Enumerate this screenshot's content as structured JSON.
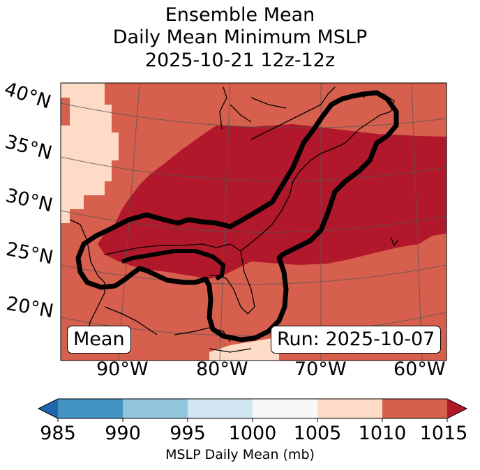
{
  "title": {
    "line1": "Ensemble Mean",
    "line2": "Daily Mean Minimum MSLP",
    "line3": "2025-10-21 12z-12z"
  },
  "map": {
    "lat_labels": [
      "40°N",
      "35°N",
      "30°N",
      "25°N",
      "20°N"
    ],
    "lon_labels": [
      "90°W",
      "80°W",
      "70°W",
      "60°W"
    ],
    "mean_label": "Mean",
    "run_label": "Run: 2025-10-07"
  },
  "colorbar": {
    "ticks": [
      "985",
      "990",
      "995",
      "1000",
      "1005",
      "1010",
      "1015"
    ],
    "label": "MSLP Daily Mean (mb)",
    "colors": {
      "under": "#2166ac",
      "b985_990": "#4393c3",
      "b990_995": "#92c5de",
      "b995_1000": "#d1e5f0",
      "b1000_1005": "#f7f7f7",
      "b1005_1010": "#fddbc7",
      "b1010_1015": "#d6604d",
      "over": "#b2182b"
    }
  }
}
